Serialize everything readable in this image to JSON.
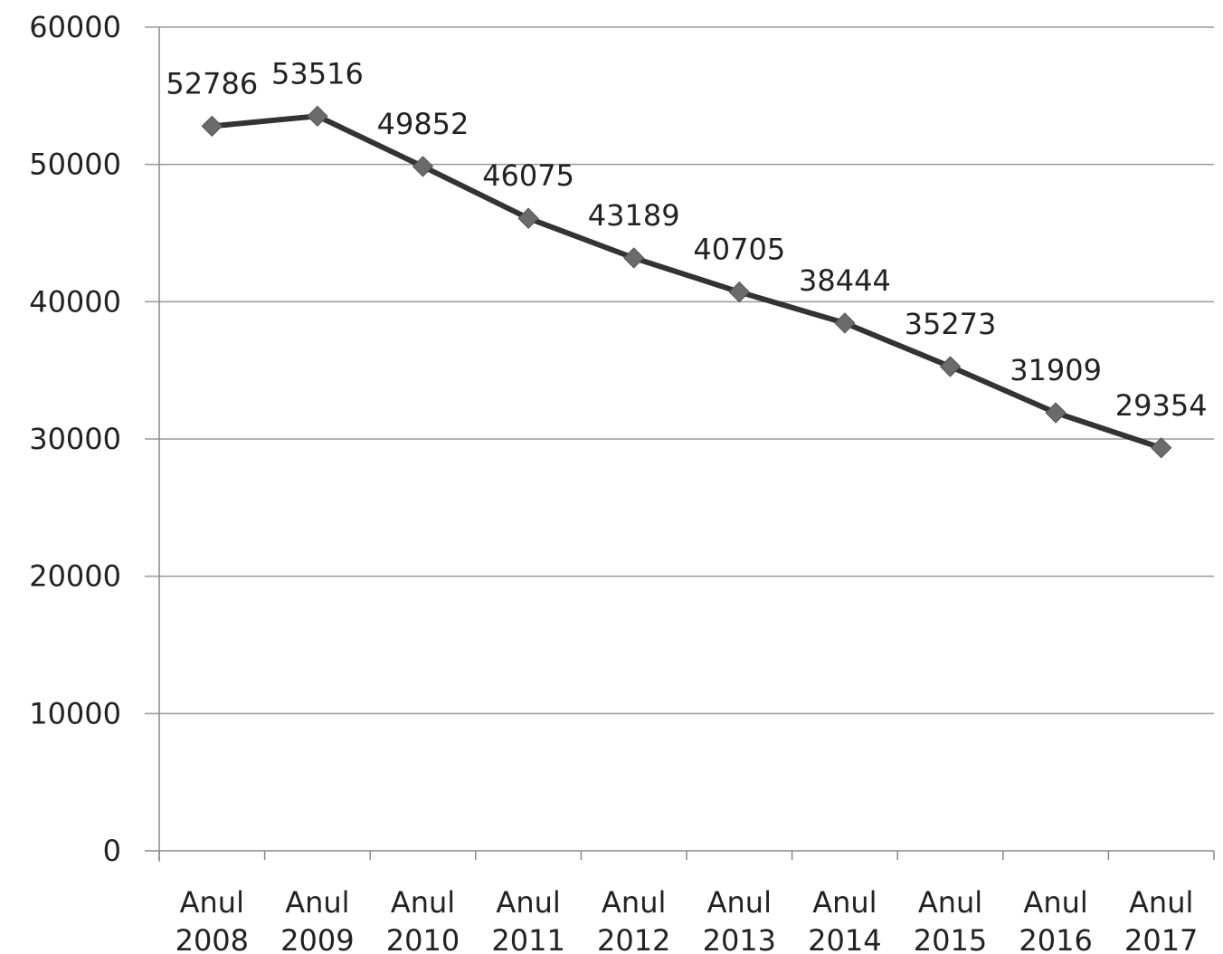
{
  "chart_data": {
    "type": "line",
    "title": "",
    "xlabel": "",
    "ylabel": "",
    "categories": [
      [
        "Anul",
        "2008"
      ],
      [
        "Anul",
        "2009"
      ],
      [
        "Anul",
        "2010"
      ],
      [
        "Anul",
        "2011"
      ],
      [
        "Anul",
        "2012"
      ],
      [
        "Anul",
        "2013"
      ],
      [
        "Anul",
        "2014"
      ],
      [
        "Anul",
        "2015"
      ],
      [
        "Anul",
        "2016"
      ],
      [
        "Anul",
        "2017"
      ]
    ],
    "series": [
      {
        "values": [
          52786,
          53516,
          49852,
          46075,
          43189,
          40705,
          38444,
          35273,
          31909,
          29354
        ],
        "labels": [
          "52786",
          "53516",
          "49852",
          "46075",
          "43189",
          "40705",
          "38444",
          "35273",
          "31909",
          "29354"
        ],
        "color": "#333333",
        "marker": "diamond",
        "marker_color": "#6b6b6b"
      }
    ],
    "ylim": [
      0,
      60000
    ],
    "yticks": [
      0,
      10000,
      20000,
      30000,
      40000,
      50000,
      60000
    ],
    "ytick_labels": [
      "0",
      "10000",
      "20000",
      "30000",
      "40000",
      "50000",
      "60000"
    ],
    "grid": true,
    "legend": "none"
  },
  "colors": {
    "grid": "#999999",
    "axis": "#888888",
    "text": "#222222"
  }
}
